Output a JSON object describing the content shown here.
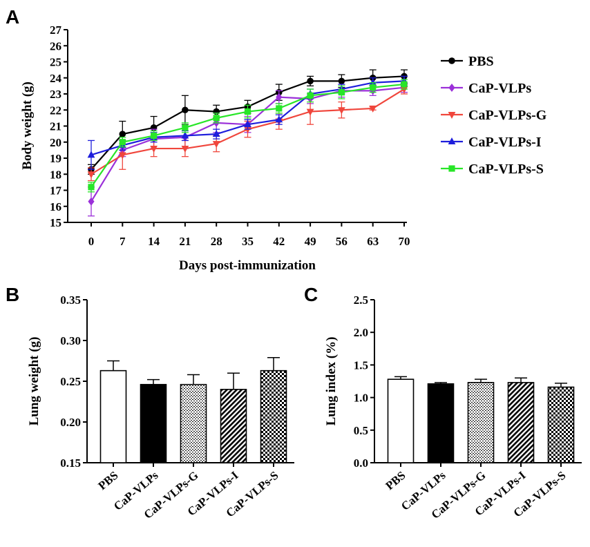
{
  "chart_data": [
    {
      "panel": "A",
      "type": "line",
      "title": "",
      "xlabel": "Days post-immunization",
      "ylabel": "Body weight (g)",
      "x": [
        0,
        7,
        14,
        21,
        28,
        35,
        42,
        49,
        56,
        63,
        70
      ],
      "ylim": [
        15,
        27
      ],
      "yticks": [
        15,
        16,
        17,
        18,
        19,
        20,
        21,
        22,
        23,
        24,
        25,
        26,
        27
      ],
      "series": [
        {
          "name": "PBS",
          "color": "#000000",
          "marker": "circle",
          "values": [
            18.3,
            20.5,
            20.9,
            22.0,
            21.9,
            22.2,
            23.1,
            23.8,
            23.8,
            24.0,
            24.1
          ],
          "errors": [
            0.3,
            0.8,
            0.7,
            0.9,
            0.4,
            0.4,
            0.5,
            0.3,
            0.4,
            0.5,
            0.4
          ]
        },
        {
          "name": "CaP-VLPs",
          "color": "#9B30D9",
          "marker": "diamond",
          "values": [
            16.3,
            19.5,
            20.2,
            20.3,
            21.2,
            21.1,
            22.8,
            22.7,
            23.2,
            23.2,
            23.4
          ],
          "errors": [
            0.9,
            0.4,
            0.6,
            0.7,
            0.6,
            0.5,
            0.4,
            0.3,
            0.4,
            0.3,
            0.3
          ]
        },
        {
          "name": "CaP-VLPs-G",
          "color": "#F0463C",
          "marker": "triangle-down",
          "values": [
            18.0,
            19.2,
            19.6,
            19.6,
            19.9,
            20.8,
            21.3,
            21.9,
            22.0,
            22.1,
            23.3
          ],
          "errors": [
            0.4,
            0.9,
            0.5,
            0.5,
            0.5,
            0.5,
            0.5,
            0.8,
            0.5,
            0.1,
            0.3
          ]
        },
        {
          "name": "CaP-VLPs-I",
          "color": "#1E1EDC",
          "marker": "triangle-up",
          "values": [
            19.2,
            19.8,
            20.3,
            20.4,
            20.5,
            21.1,
            21.4,
            23.0,
            23.3,
            23.7,
            23.8
          ],
          "errors": [
            0.9,
            0.3,
            0.3,
            0.3,
            0.3,
            0.3,
            0.3,
            0.3,
            0.3,
            0.3,
            0.3
          ]
        },
        {
          "name": "CaP-VLPs-S",
          "color": "#28E628",
          "marker": "square",
          "values": [
            17.2,
            20.0,
            20.4,
            20.9,
            21.5,
            21.9,
            22.1,
            22.9,
            23.1,
            23.4,
            23.6
          ],
          "errors": [
            0.3,
            0.3,
            0.3,
            0.3,
            0.3,
            0.4,
            0.3,
            0.4,
            0.4,
            0.3,
            0.3
          ]
        }
      ]
    },
    {
      "panel": "B",
      "type": "bar",
      "title": "",
      "xlabel": "",
      "ylabel": "Lung weight (g)",
      "categories": [
        "PBS",
        "CaP-VLPs",
        "CaP-VLPs-G",
        "CaP-VLPs-I",
        "CaP-VLPs-S"
      ],
      "values": [
        0.263,
        0.246,
        0.246,
        0.24,
        0.263
      ],
      "errors": [
        0.012,
        0.006,
        0.012,
        0.02,
        0.016
      ],
      "ylim": [
        0.15,
        0.35
      ],
      "yticks": [
        "0.15",
        "0.20",
        "0.25",
        "0.30",
        "0.35"
      ]
    },
    {
      "panel": "C",
      "type": "bar",
      "title": "",
      "xlabel": "",
      "ylabel": "Lung index  (%)",
      "categories": [
        "PBS",
        "CaP-VLPs",
        "CaP-VLPs-G",
        "CaP-VLPs-I",
        "CaP-VLPs-S"
      ],
      "values": [
        1.28,
        1.21,
        1.23,
        1.23,
        1.16
      ],
      "errors": [
        0.04,
        0.02,
        0.05,
        0.07,
        0.06
      ],
      "ylim": [
        0.0,
        2.5
      ],
      "yticks": [
        "0.0",
        "0.5",
        "1.0",
        "1.5",
        "2.0",
        "2.5"
      ]
    }
  ],
  "panel_labels": [
    "A",
    "B",
    "C"
  ],
  "bar_fills": [
    "hollow",
    "solid",
    "dotted",
    "diagonal-hatch",
    "checkerboard"
  ]
}
